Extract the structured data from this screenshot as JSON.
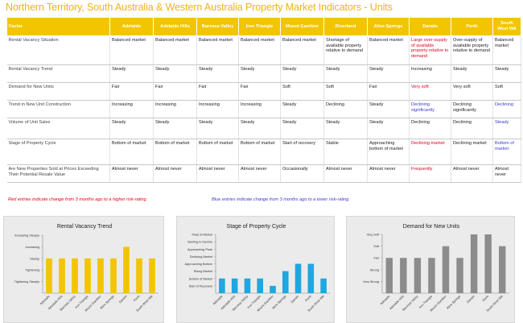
{
  "title": "Northern Territory, South Australia & Western Australia Property Market Indicators - Units",
  "table": {
    "headers": [
      "Factor",
      "Adelaide",
      "Adelaide Hills",
      "Barossa Valley",
      "Iron Triangle",
      "Mount Gambier",
      "Riverland",
      "Alice Springs",
      "Darwin",
      "Perth",
      "South West WA"
    ],
    "rows": [
      {
        "factor": "Rental Vacancy Situation",
        "cells": [
          "Balanced market",
          "Balanced market",
          "Balanced market",
          "Balanced market",
          "Balanced market",
          "Shortage of available property relative to demand",
          "Balanced market",
          "Large over-supply of available property relative to demand",
          "Over-supply of available property relative to demand",
          "Balanced market"
        ],
        "colors": [
          "",
          "",
          "",
          "",
          "",
          "",
          "",
          "red",
          "",
          ""
        ]
      },
      {
        "factor": "Rental Vacancy Trend",
        "cells": [
          "Steady",
          "Steady",
          "Steady",
          "Steady",
          "Steady",
          "Steady",
          "Steady",
          "Increasing",
          "Steady",
          "Steady"
        ],
        "colors": [
          "",
          "",
          "",
          "",
          "",
          "",
          "",
          "",
          "",
          ""
        ]
      },
      {
        "factor": "Demand for New Units",
        "cells": [
          "Fair",
          "Fair",
          "Fair",
          "Fair",
          "Soft",
          "Soft",
          "Fair",
          "Very soft",
          "Very soft",
          "Soft"
        ],
        "colors": [
          "",
          "",
          "",
          "",
          "",
          "",
          "",
          "red",
          "",
          ""
        ]
      },
      {
        "factor": "Trend in New Unit Construction",
        "cells": [
          "Increasing",
          "Increasing",
          "Increasing",
          "Increasing",
          "Steady",
          "Declining",
          "Steady",
          "Declining significantly",
          "Declining significantly",
          "Declining"
        ],
        "colors": [
          "",
          "",
          "",
          "",
          "",
          "",
          "",
          "blue",
          "",
          "blue"
        ]
      },
      {
        "factor": "Volume of Unit Sales",
        "cells": [
          "Steady",
          "Steady",
          "Steady",
          "Steady",
          "Steady",
          "Steady",
          "Steady",
          "Declining",
          "Declining",
          "Steady"
        ],
        "colors": [
          "",
          "",
          "",
          "",
          "",
          "",
          "",
          "",
          "",
          "blue"
        ]
      },
      {
        "factor": "Stage of Property Cycle",
        "cells": [
          "Bottom of market",
          "Bottom of market",
          "Bottom of market",
          "Bottom of market",
          "Start of recovery",
          "Stable",
          "Approaching bottom of market",
          "Declining market",
          "Declining market",
          "Bottom of market"
        ],
        "colors": [
          "",
          "",
          "",
          "",
          "",
          "",
          "",
          "red",
          "",
          "blue"
        ]
      },
      {
        "factor": "Are New Properties Sold at Prices Exceeding Their Potential Resale Value",
        "cells": [
          "Almost never",
          "Almost never",
          "Almost never",
          "Almost never",
          "Occasionally",
          "Almost never",
          "Almost never",
          "Frequently",
          "Almost never",
          "Almost never"
        ],
        "colors": [
          "",
          "",
          "",
          "",
          "",
          "",
          "",
          "red",
          "",
          ""
        ]
      }
    ]
  },
  "notes": {
    "red": "Red entries indicate change from 3 months ago to a higher risk-rating",
    "blue": "Blue entries indicate change from 3 months ago to a lower risk-rating"
  },
  "colors": {
    "header": "#f2c500",
    "red": "#e3001b",
    "blue": "#3a3ad6"
  },
  "chart_data": [
    {
      "type": "bar",
      "title": "Rental Vacancy Trend",
      "categories": [
        "Adelaide",
        "Adelaide Hills",
        "Barossa Valley",
        "Iron Triangle",
        "Mount Gambier",
        "Alice Springs",
        "Darwin",
        "Perth",
        "South West WA"
      ],
      "y_ticks": [
        "Tightening Steeply",
        "Tightening",
        "Steady",
        "Increasing",
        "Increasing Steeply"
      ],
      "values": [
        3,
        3,
        3,
        3,
        3,
        3,
        4,
        3,
        3
      ],
      "ylim": [
        0,
        5
      ],
      "color": "#f2c500"
    },
    {
      "type": "bar",
      "title": "Stage of Property Cycle",
      "categories": [
        "Adelaide",
        "Adelaide Hills",
        "Barossa Valley",
        "Iron Triangle",
        "Mount Gambier",
        "Alice Springs",
        "Darwin",
        "Perth",
        "South West WA"
      ],
      "y_ticks": [
        "Start of Recovery",
        "Bottom of Market",
        "Rising Market",
        "Approaching Bottom",
        "Declining Market",
        "Approaching Peak",
        "Starting to Decline",
        "Peak of Market"
      ],
      "values": [
        2,
        2,
        2,
        2,
        1,
        3,
        4,
        4,
        2
      ],
      "ylim": [
        0,
        8
      ],
      "color": "#1ea7e0"
    },
    {
      "type": "bar",
      "title": "Demand for New Units",
      "categories": [
        "Adelaide",
        "Adelaide Hills",
        "Barossa Valley",
        "Iron Triangle",
        "Mount Gambier",
        "Alice Springs",
        "Darwin",
        "Perth",
        "South West WA"
      ],
      "y_ticks": [
        "Very Strong",
        "Strong",
        "Fair",
        "Soft",
        "Very Soft"
      ],
      "values": [
        3,
        3,
        3,
        3,
        4,
        3,
        5,
        5,
        4
      ],
      "ylim": [
        0,
        5
      ],
      "color": "#8c8c8c"
    }
  ]
}
